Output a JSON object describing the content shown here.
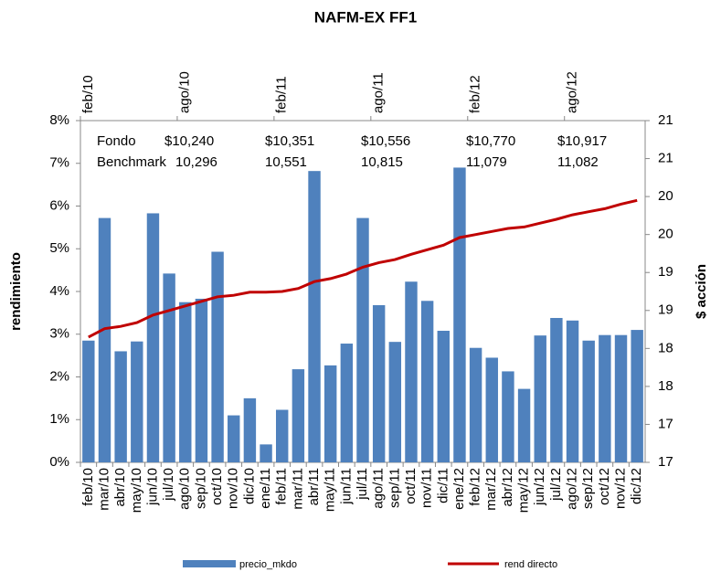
{
  "chart_data": {
    "type": "bar_line",
    "title": "NAFM-EX FF1",
    "y_label": "rendimiento",
    "y2_label": "$ acción",
    "categories": [
      "feb/10",
      "mar/10",
      "abr/10",
      "may/10",
      "jun/10",
      "jul/10",
      "ago/10",
      "sep/10",
      "oct/10",
      "nov/10",
      "dic/10",
      "ene/11",
      "feb/11",
      "mar/11",
      "abr/11",
      "may/11",
      "jun/11",
      "jul/11",
      "ago/11",
      "sep/11",
      "oct/11",
      "nov/11",
      "dic/11",
      "ene/12",
      "feb/12",
      "mar/12",
      "abr/12",
      "may/12",
      "jun/12",
      "jul/12",
      "ago/12",
      "sep/12",
      "oct/12",
      "nov/12",
      "dic/12"
    ],
    "top_categories": [
      "feb/10",
      "ago/10",
      "feb/11",
      "ago/11",
      "feb/12",
      "ago/12"
    ],
    "series": [
      {
        "name": "precio_mkdo",
        "type": "bar",
        "color": "#4f81bd",
        "values": [
          2.85,
          5.72,
          2.6,
          2.83,
          5.83,
          4.42,
          3.75,
          3.83,
          4.93,
          1.1,
          1.5,
          0.42,
          1.23,
          2.18,
          6.82,
          2.27,
          2.78,
          5.72,
          3.68,
          2.82,
          4.23,
          3.78,
          3.08,
          6.9,
          2.68,
          2.45,
          2.13,
          1.72,
          2.97,
          3.38,
          3.32,
          2.85,
          2.98,
          2.98,
          3.1
        ]
      },
      {
        "name": "rend directo",
        "type": "line",
        "axis": "y2",
        "color": "#c00000",
        "values": [
          18.15,
          18.26,
          18.29,
          18.34,
          18.44,
          18.5,
          18.56,
          18.62,
          18.68,
          18.7,
          18.74,
          18.74,
          18.75,
          18.79,
          18.88,
          18.92,
          18.98,
          19.07,
          19.13,
          19.17,
          19.24,
          19.3,
          19.36,
          19.46,
          19.5,
          19.54,
          19.58,
          19.6,
          19.65,
          19.7,
          19.76,
          19.8,
          19.84,
          19.9,
          19.95
        ]
      }
    ],
    "ylim": [
      0,
      8
    ],
    "yticks": [
      {
        "value": 0,
        "label": "0%"
      },
      {
        "value": 1,
        "label": "1%"
      },
      {
        "value": 2,
        "label": "2%"
      },
      {
        "value": 3,
        "label": "3%"
      },
      {
        "value": 4,
        "label": "4%"
      },
      {
        "value": 5,
        "label": "5%"
      },
      {
        "value": 6,
        "label": "6%"
      },
      {
        "value": 7,
        "label": "7%"
      },
      {
        "value": 8,
        "label": "8%"
      }
    ],
    "y2lim": [
      16.5,
      21
    ],
    "y2ticks": [
      {
        "value": 16.5,
        "label": "17"
      },
      17,
      {
        "value": 17.5,
        "label": "18"
      },
      18,
      {
        "value": 18.5,
        "label": "19"
      },
      19,
      {
        "value": 19.5,
        "label": "20"
      },
      20,
      {
        "value": 20.5,
        "label": "21"
      },
      21
    ],
    "annotations": {
      "row_labels": [
        "Fondo",
        "Benchmark"
      ],
      "columns": [
        [
          "$10,240",
          "10,296"
        ],
        [
          "$10,351",
          "10,551"
        ],
        [
          "$10,556",
          "10,815"
        ],
        [
          "$10,770",
          "11,079"
        ],
        [
          "$10,917",
          "11,082"
        ]
      ]
    }
  }
}
